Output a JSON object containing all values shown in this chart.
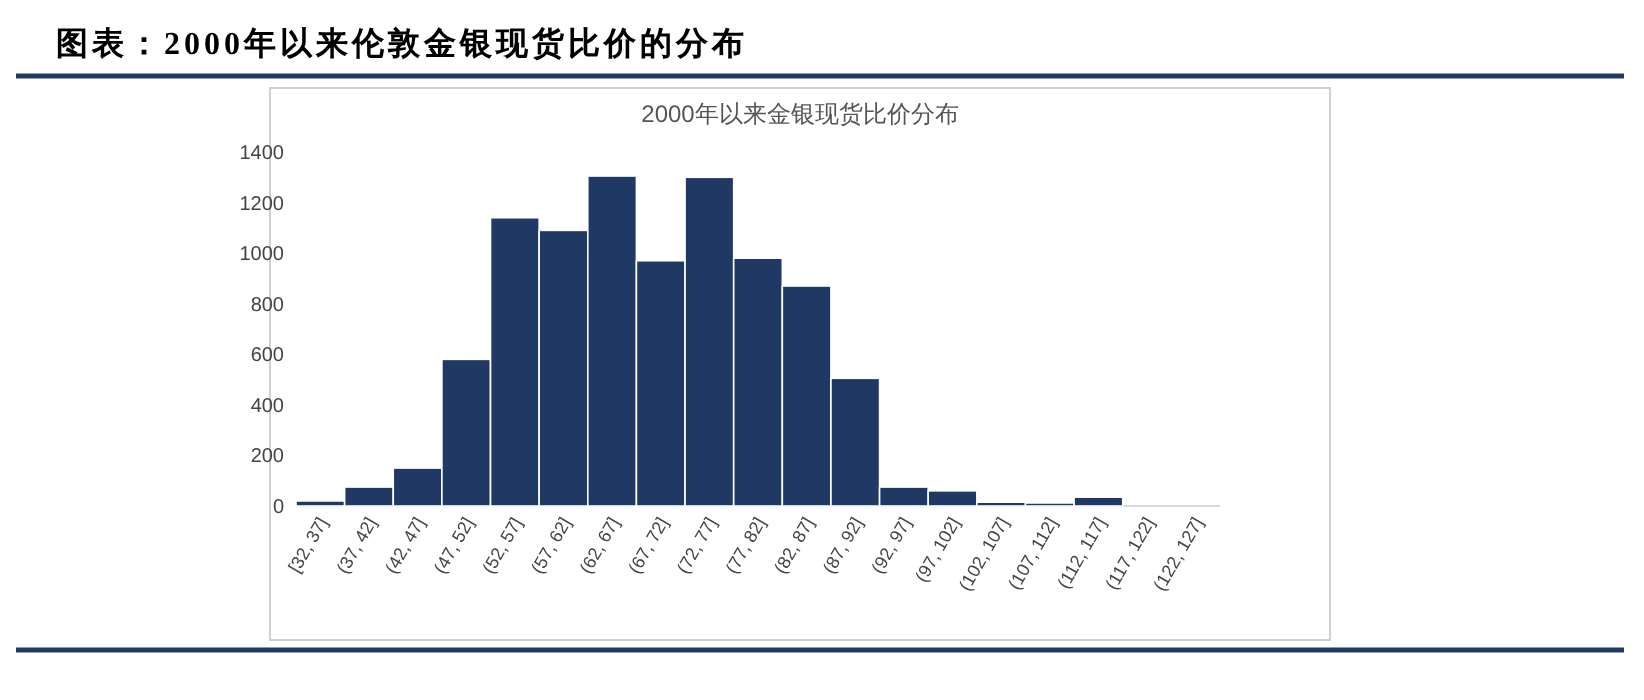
{
  "chart_data": {
    "type": "bar",
    "title": "图表：2000年以来伦敦金银现货比价的分布",
    "subtitle": "2000年以来金银现货比价分布",
    "categories": [
      "[32, 37]",
      "(37, 42]",
      "(42, 47]",
      "(47, 52]",
      "(52, 57]",
      "(57, 62]",
      "(62, 67]",
      "(67, 72]",
      "(72, 77]",
      "(77, 82]",
      "(82, 87]",
      "(87, 92]",
      "(92, 97]",
      "(97, 102]",
      "(102, 107]",
      "(107, 112]",
      "(112, 117]",
      "(117, 122]",
      "(122, 127]"
    ],
    "values": [
      20,
      75,
      150,
      580,
      1140,
      1090,
      1305,
      970,
      1300,
      980,
      870,
      505,
      75,
      60,
      15,
      12,
      35,
      0,
      0
    ],
    "color": "#1f3864",
    "ylim": [
      0,
      1400
    ],
    "yticks": [
      0,
      200,
      400,
      600,
      800,
      1000,
      1200,
      1400
    ],
    "grid": false
  }
}
